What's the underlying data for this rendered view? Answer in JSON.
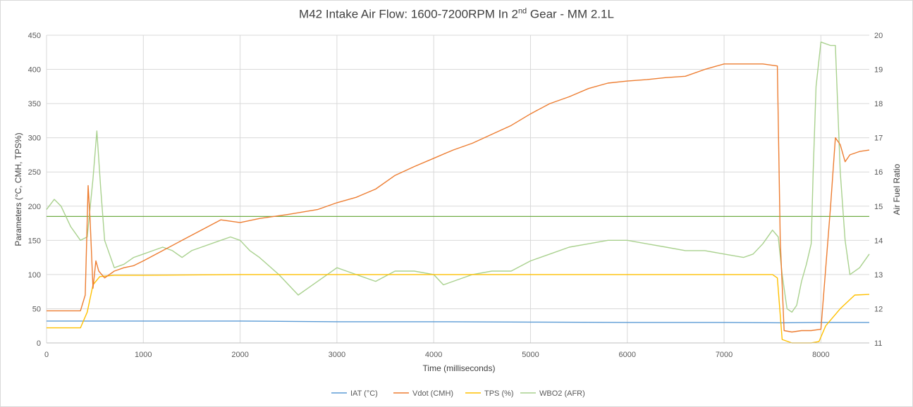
{
  "chart_data": {
    "type": "line",
    "title_main": "M42 Intake Air Flow: 1600-7200RPM In 2",
    "title_sup": "nd",
    "title_tail": " Gear - MM 2.1L",
    "xlabel": "Time (milliseconds)",
    "ylabel": "Parameters (°C, CMH, TPS%)",
    "y2label": "Air Fuel Ratio",
    "xlim": [
      0,
      8500
    ],
    "ylim": [
      0,
      450
    ],
    "y2lim": [
      11,
      20
    ],
    "x_ticks": [
      0,
      1000,
      2000,
      3000,
      4000,
      5000,
      6000,
      7000,
      8000
    ],
    "y_ticks": [
      0,
      50,
      100,
      150,
      200,
      250,
      300,
      350,
      400,
      450
    ],
    "y2_ticks": [
      11,
      12,
      13,
      14,
      15,
      16,
      17,
      18,
      19,
      20
    ],
    "grid": true,
    "legend": "bottom",
    "reference_line": {
      "axis": "y2",
      "value": 14.7,
      "color": "#70ad47"
    },
    "series": [
      {
        "name": "IAT (°C)",
        "axis": "y",
        "color": "#5b9bd5",
        "x": [
          0,
          1000,
          2000,
          3000,
          4000,
          5000,
          6000,
          7000,
          7600,
          8000,
          8500
        ],
        "values": [
          32,
          32,
          32,
          31,
          31,
          30.5,
          30,
          30,
          29.5,
          30,
          30
        ]
      },
      {
        "name": "Vdot (CMH)",
        "axis": "y",
        "color": "#ed7d31",
        "x": [
          0,
          350,
          400,
          430,
          450,
          480,
          510,
          540,
          600,
          700,
          800,
          900,
          1000,
          1200,
          1400,
          1600,
          1800,
          2000,
          2200,
          2500,
          2800,
          3000,
          3200,
          3400,
          3600,
          3800,
          4000,
          4200,
          4400,
          4600,
          4800,
          5000,
          5200,
          5400,
          5600,
          5800,
          6000,
          6200,
          6400,
          6600,
          6800,
          7000,
          7200,
          7400,
          7550,
          7580,
          7620,
          7700,
          7800,
          7900,
          8000,
          8100,
          8150,
          8200,
          8250,
          8300,
          8400,
          8500
        ],
        "values": [
          47,
          47,
          70,
          230,
          180,
          80,
          120,
          105,
          95,
          105,
          110,
          113,
          120,
          135,
          150,
          165,
          180,
          176,
          182,
          188,
          195,
          205,
          213,
          225,
          245,
          258,
          270,
          282,
          292,
          305,
          318,
          335,
          350,
          360,
          372,
          380,
          383,
          385,
          388,
          390,
          400,
          408,
          408,
          408,
          405,
          150,
          18,
          16,
          18,
          18,
          20,
          200,
          300,
          290,
          265,
          275,
          280,
          282
        ]
      },
      {
        "name": "TPS (%)",
        "axis": "y",
        "color": "#ffc000",
        "x": [
          0,
          350,
          420,
          480,
          550,
          700,
          1000,
          2000,
          3000,
          4000,
          5000,
          6000,
          7000,
          7500,
          7550,
          7600,
          7700,
          7900,
          7980,
          8050,
          8200,
          8350,
          8500
        ],
        "values": [
          22,
          22,
          45,
          85,
          97,
          99,
          99,
          100,
          100,
          100,
          100,
          100,
          100,
          100,
          95,
          5,
          0,
          0,
          2,
          25,
          50,
          70,
          71
        ]
      },
      {
        "name": "WBO2 (AFR)",
        "axis": "y2",
        "color": "#a9d18e",
        "x": [
          0,
          80,
          150,
          250,
          350,
          420,
          480,
          520,
          560,
          600,
          700,
          800,
          900,
          1000,
          1100,
          1200,
          1300,
          1400,
          1500,
          1600,
          1800,
          1900,
          2000,
          2100,
          2200,
          2400,
          2600,
          2700,
          2900,
          3000,
          3200,
          3400,
          3600,
          3800,
          4000,
          4100,
          4200,
          4400,
          4600,
          4800,
          5000,
          5200,
          5400,
          5600,
          5800,
          6000,
          6200,
          6400,
          6600,
          6800,
          7000,
          7200,
          7300,
          7400,
          7500,
          7560,
          7600,
          7650,
          7700,
          7750,
          7800,
          7850,
          7900,
          7920,
          7950,
          8000,
          8100,
          8150,
          8200,
          8250,
          8300,
          8400,
          8500
        ],
        "values": [
          14.9,
          15.2,
          15.0,
          14.4,
          14.0,
          14.1,
          15.8,
          17.2,
          15.5,
          14.0,
          13.2,
          13.3,
          13.5,
          13.6,
          13.7,
          13.8,
          13.7,
          13.5,
          13.7,
          13.8,
          14.0,
          14.1,
          14.0,
          13.7,
          13.5,
          13.0,
          12.4,
          12.6,
          13.0,
          13.2,
          13.0,
          12.8,
          13.1,
          13.1,
          13.0,
          12.7,
          12.8,
          13.0,
          13.1,
          13.1,
          13.4,
          13.6,
          13.8,
          13.9,
          14.0,
          14.0,
          13.9,
          13.8,
          13.7,
          13.7,
          13.6,
          13.5,
          13.6,
          13.9,
          14.3,
          14.1,
          13.0,
          12.0,
          11.9,
          12.1,
          12.8,
          13.3,
          13.9,
          16.0,
          18.5,
          19.8,
          19.7,
          19.7,
          16.0,
          14.0,
          13.0,
          13.2,
          13.6
        ]
      }
    ]
  }
}
